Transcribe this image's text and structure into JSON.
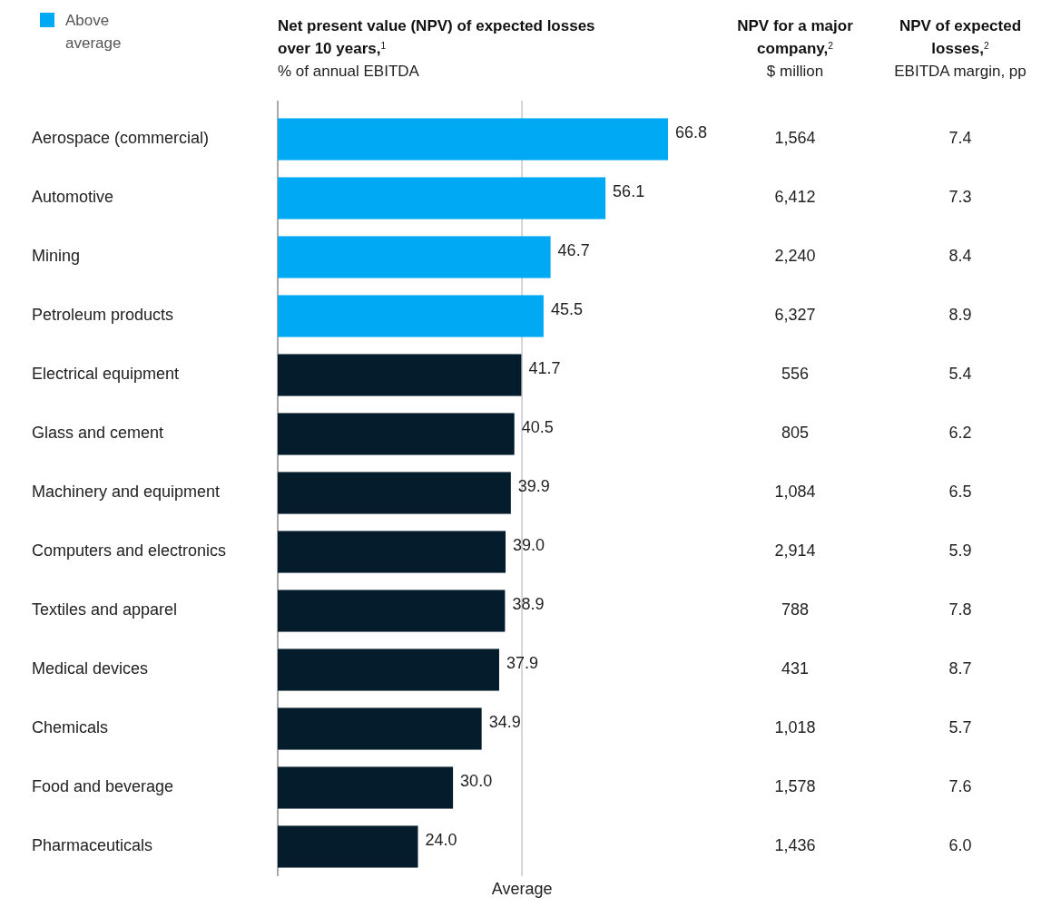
{
  "chart_data": [
    {
      "type": "bar",
      "orientation": "horizontal",
      "title": "Net present value (NPV) of expected losses over 10 years,$^{1}$",
      "subtitle": "% of annual EBITDA",
      "categories": [
        "Aerospace (commercial)",
        "Automotive",
        "Mining",
        "Petroleum products",
        "Electrical equipment",
        "Glass and cement",
        "Machinery and equipment",
        "Computers and electronics",
        "Textiles and apparel",
        "Medical devices",
        "Chemicals",
        "Food and beverage",
        "Pharmaceuticals"
      ],
      "series": [
        {
          "name": "Above average",
          "color": "#00a9f4",
          "values": [
            66.8,
            56.1,
            46.7,
            45.5,
            null,
            null,
            null,
            null,
            null,
            null,
            null,
            null,
            null
          ],
          "value_labels": [
            "66.8",
            "56.1",
            "46.7",
            "45.5",
            null,
            null,
            null,
            null,
            null,
            null,
            null,
            null,
            null
          ]
        },
        {
          "color": "#051c2c",
          "values": [
            null,
            null,
            null,
            null,
            41.7,
            40.5,
            39.9,
            39.0,
            38.9,
            37.9,
            34.9,
            30.0,
            24.0
          ],
          "value_labels": [
            null,
            null,
            null,
            null,
            "41.7",
            "40.5",
            "39.9",
            "39.0",
            "38.9",
            "37.9",
            "34.9",
            "30.0",
            "24.0"
          ]
        }
      ],
      "legend": "top left",
      "ref_lines": [
        {
          "axis": "x",
          "value": 41.8,
          "label": "Average",
          "color": "#c8c8c8"
        }
      ]
    },
    {
      "type": "other",
      "title": "NPV for a major company,$^{2}$",
      "subtitle": "$ million",
      "annotations": [
        "1,564",
        "6,412",
        "2,240",
        "6,327",
        "556",
        "805",
        "1,084",
        "2,914",
        "788",
        "431",
        "1,018",
        "1,578",
        "1,436"
      ]
    },
    {
      "type": "other",
      "title": "NPV of expected losses,$^{2}$",
      "subtitle": "EBITDA margin, pp",
      "annotations": [
        "7.4",
        "7.3",
        "8.4",
        "8.9",
        "5.4",
        "6.2",
        "6.5",
        "5.9",
        "7.8",
        "8.7",
        "5.7",
        "7.6",
        "6.0"
      ]
    }
  ]
}
